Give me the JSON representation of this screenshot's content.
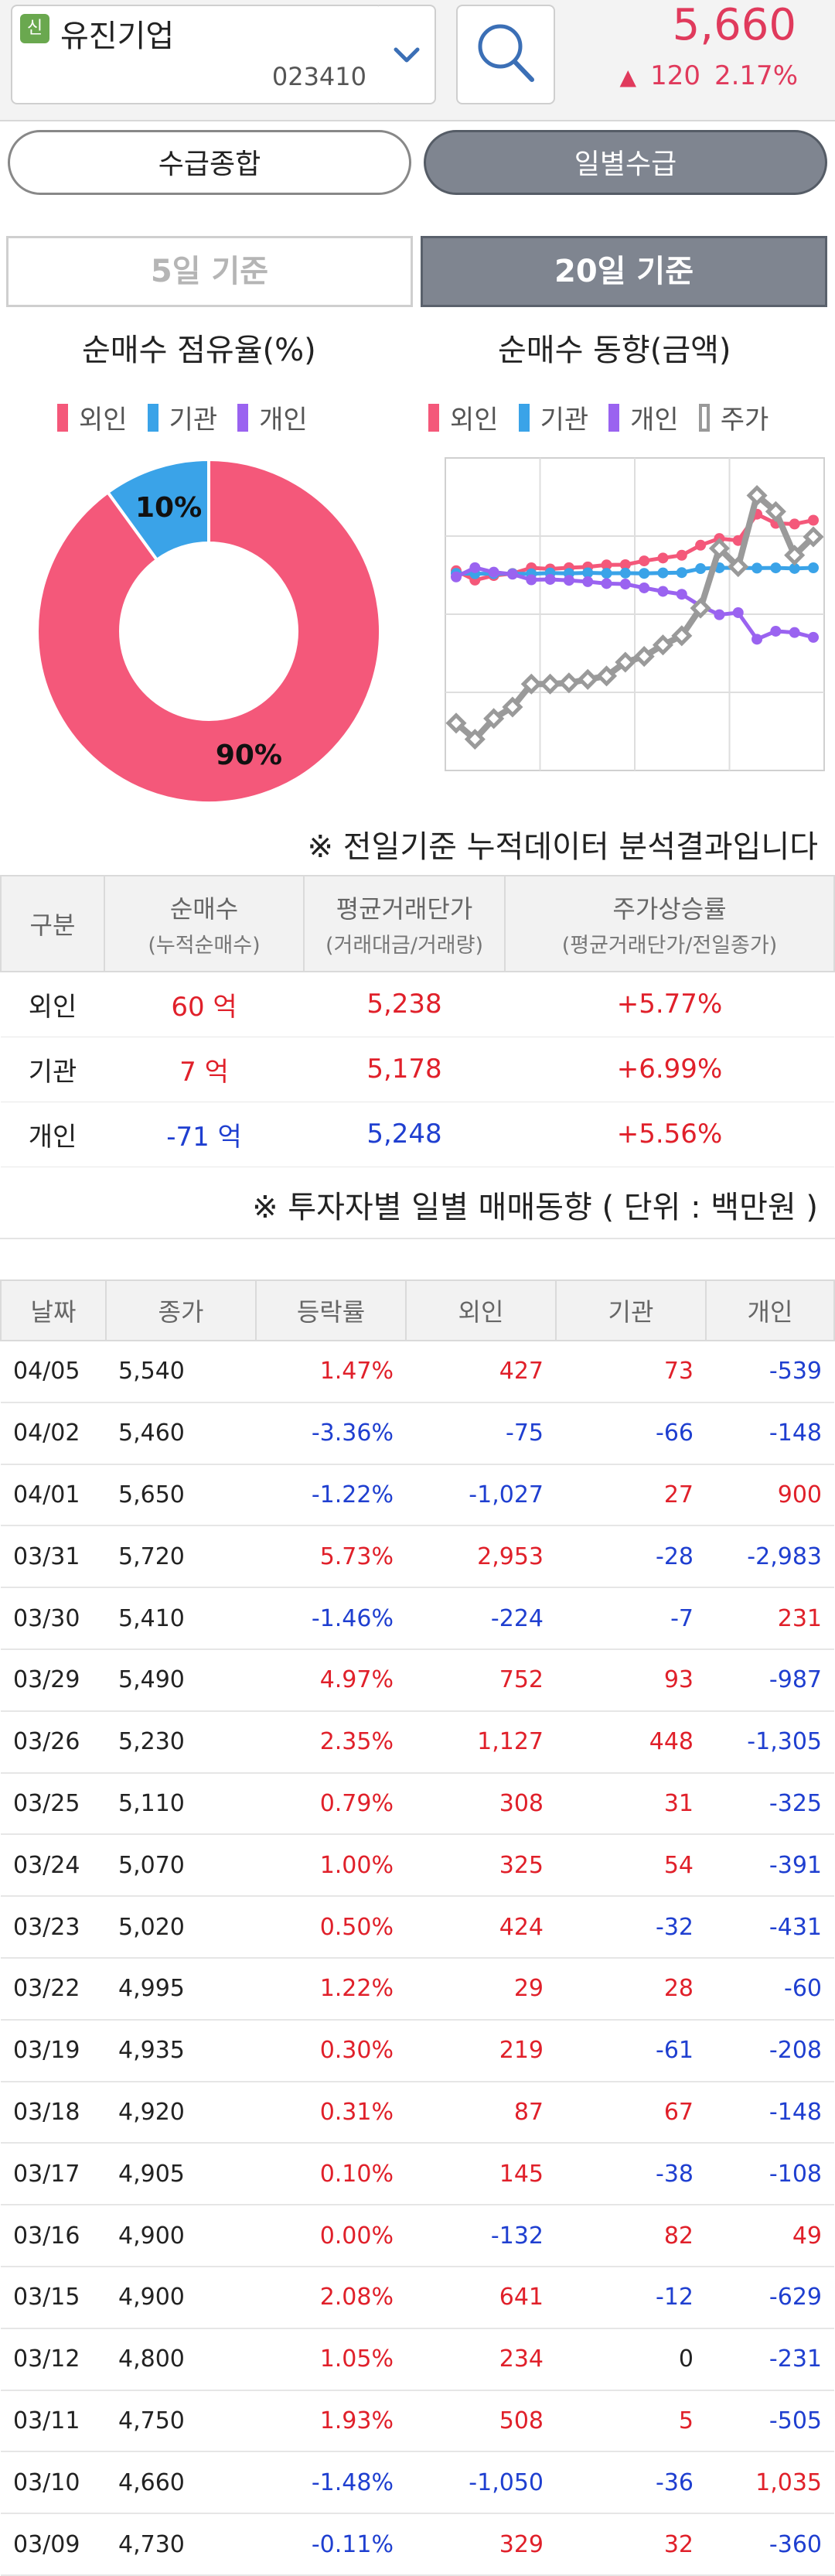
{
  "header": {
    "badge": "신",
    "stock_name": "유진기업",
    "stock_code": "023410",
    "price": "5,660",
    "change_arrow": "▲",
    "change": "120",
    "change_pct": "2.17%"
  },
  "tabs": [
    "수급종합",
    "일별수급"
  ],
  "periods": [
    "5일 기준",
    "20일 기준"
  ],
  "donut": {
    "title": "순매수 점유율(%)",
    "legend": [
      "외인",
      "기관",
      "개인"
    ],
    "labels": [
      "90%",
      "10%"
    ]
  },
  "trend": {
    "title": "순매수 동향(금액)",
    "legend": [
      "외인",
      "기관",
      "개인",
      "주가"
    ]
  },
  "colors": {
    "foreign": "#f4587a",
    "institution": "#3aa3e8",
    "individual": "#9a63f0",
    "price": "#9a9a9a",
    "up": "#e0202a",
    "down": "#1f3fd0"
  },
  "chart_data": [
    {
      "type": "pie",
      "title": "순매수 점유율(%)",
      "categories": [
        "외인",
        "기관",
        "개인"
      ],
      "values": [
        90,
        10,
        0
      ]
    },
    {
      "type": "line",
      "title": "순매수 동향(금액)",
      "x": [
        "03/09",
        "03/10",
        "03/11",
        "03/12",
        "03/15",
        "03/16",
        "03/17",
        "03/18",
        "03/19",
        "03/22",
        "03/23",
        "03/24",
        "03/25",
        "03/26",
        "03/29",
        "03/30",
        "03/31",
        "04/01",
        "04/02",
        "04/05"
      ],
      "series": [
        {
          "name": "외인",
          "values": [
            329,
            -721,
            -213,
            21,
            662,
            530,
            675,
            762,
            981,
            1010,
            1434,
            1759,
            2067,
            3194,
            3946,
            3722,
            6675,
            5648,
            5573,
            6000
          ]
        },
        {
          "name": "기관",
          "values": [
            32,
            -4,
            1,
            1,
            -11,
            71,
            33,
            100,
            39,
            67,
            35,
            89,
            120,
            568,
            661,
            654,
            626,
            653,
            587,
            660
          ]
        },
        {
          "name": "개인",
          "values": [
            -360,
            675,
            170,
            -61,
            -690,
            -641,
            -749,
            -897,
            -1105,
            -1165,
            -1596,
            -1987,
            -2312,
            -3617,
            -4604,
            -4373,
            -7356,
            -6456,
            -6604,
            -7143
          ]
        },
        {
          "name": "주가",
          "values": [
            4730,
            4660,
            4750,
            4800,
            4900,
            4900,
            4905,
            4920,
            4935,
            4995,
            5020,
            5070,
            5110,
            5230,
            5490,
            5410,
            5720,
            5650,
            5460,
            5540
          ]
        }
      ]
    }
  ],
  "note1": "※ 전일기준 누적데이터 분석결과입니다",
  "summary": {
    "headers": [
      {
        "main": "구분",
        "sub": ""
      },
      {
        "main": "순매수",
        "sub": "(누적순매수)"
      },
      {
        "main": "평균거래단가",
        "sub": "(거래대금/거래량)"
      },
      {
        "main": "주가상승률",
        "sub": "(평균거래단가/전일종가)"
      }
    ],
    "rows": [
      {
        "name": "외인",
        "net": "60 억",
        "avg": "5,238",
        "rate": "+5.77%",
        "net_cls": "r",
        "avg_cls": "r"
      },
      {
        "name": "기관",
        "net": "7 억",
        "avg": "5,178",
        "rate": "+6.99%",
        "net_cls": "r",
        "avg_cls": "r"
      },
      {
        "name": "개인",
        "net": "-71 억",
        "avg": "5,248",
        "rate": "+5.56%",
        "net_cls": "b",
        "avg_cls": "b"
      }
    ]
  },
  "note2": "※ 투자자별 일별 매매동향 ( 단위 : 백만원 )",
  "daily": {
    "headers": [
      "날짜",
      "종가",
      "등락률",
      "외인",
      "기관",
      "개인"
    ],
    "rows": [
      [
        "04/05",
        "5,540",
        "1.47%",
        "427",
        "73",
        "-539"
      ],
      [
        "04/02",
        "5,460",
        "-3.36%",
        "-75",
        "-66",
        "-148"
      ],
      [
        "04/01",
        "5,650",
        "-1.22%",
        "-1,027",
        "27",
        "900"
      ],
      [
        "03/31",
        "5,720",
        "5.73%",
        "2,953",
        "-28",
        "-2,983"
      ],
      [
        "03/30",
        "5,410",
        "-1.46%",
        "-224",
        "-7",
        "231"
      ],
      [
        "03/29",
        "5,490",
        "4.97%",
        "752",
        "93",
        "-987"
      ],
      [
        "03/26",
        "5,230",
        "2.35%",
        "1,127",
        "448",
        "-1,305"
      ],
      [
        "03/25",
        "5,110",
        "0.79%",
        "308",
        "31",
        "-325"
      ],
      [
        "03/24",
        "5,070",
        "1.00%",
        "325",
        "54",
        "-391"
      ],
      [
        "03/23",
        "5,020",
        "0.50%",
        "424",
        "-32",
        "-431"
      ],
      [
        "03/22",
        "4,995",
        "1.22%",
        "29",
        "28",
        "-60"
      ],
      [
        "03/19",
        "4,935",
        "0.30%",
        "219",
        "-61",
        "-208"
      ],
      [
        "03/18",
        "4,920",
        "0.31%",
        "87",
        "67",
        "-148"
      ],
      [
        "03/17",
        "4,905",
        "0.10%",
        "145",
        "-38",
        "-108"
      ],
      [
        "03/16",
        "4,900",
        "0.00%",
        "-132",
        "82",
        "49"
      ],
      [
        "03/15",
        "4,900",
        "2.08%",
        "641",
        "-12",
        "-629"
      ],
      [
        "03/12",
        "4,800",
        "1.05%",
        "234",
        "0",
        "-231"
      ],
      [
        "03/11",
        "4,750",
        "1.93%",
        "508",
        "5",
        "-505"
      ],
      [
        "03/10",
        "4,660",
        "-1.48%",
        "-1,050",
        "-36",
        "1,035"
      ],
      [
        "03/09",
        "4,730",
        "-0.11%",
        "329",
        "32",
        "-360"
      ]
    ]
  }
}
